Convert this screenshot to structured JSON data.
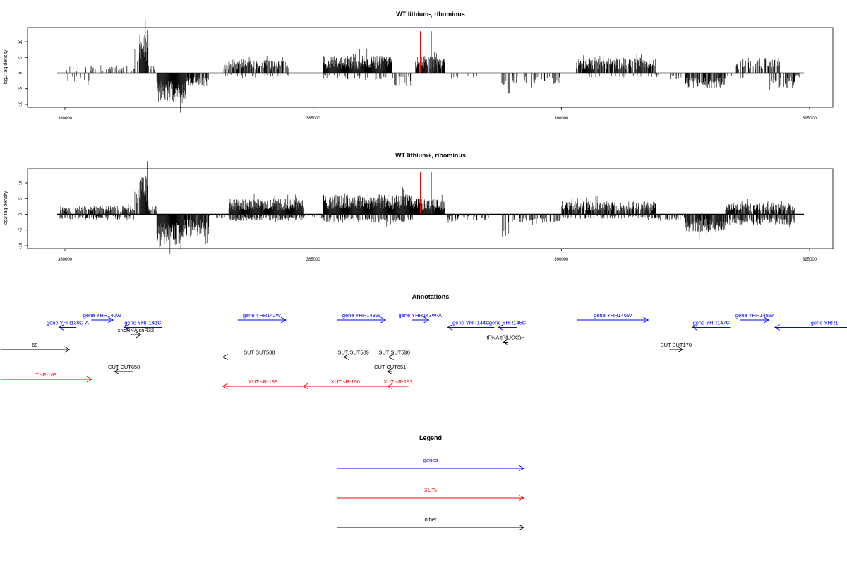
{
  "chart_data": [
    {
      "type": "bar",
      "title": "WT lithium-, ribominus",
      "ylabel": "log2 tag density",
      "xlim": [
        379850,
        394850
      ],
      "ylim": [
        -10,
        14
      ],
      "yticks": [
        -10,
        -5,
        0,
        5,
        10
      ],
      "xticks": [
        380000,
        385000,
        390000,
        395000
      ],
      "grid": false,
      "segments": [
        {
          "x0": 380000,
          "x1": 380600,
          "sign": 1,
          "level": 1.5,
          "density": 0.1
        },
        {
          "x0": 380000,
          "x1": 380500,
          "sign": -1,
          "level": 2,
          "density": 0.05
        },
        {
          "x0": 380500,
          "x1": 381400,
          "sign": 1,
          "level": 1.8,
          "density": 0.2
        },
        {
          "x0": 381400,
          "x1": 381500,
          "sign": 1,
          "level": 7,
          "density": 0.5
        },
        {
          "x0": 381500,
          "x1": 381680,
          "sign": 1,
          "level": 9,
          "density": 1.0
        },
        {
          "x0": 381680,
          "x1": 381800,
          "sign": 1,
          "level": 2,
          "density": 0.5
        },
        {
          "x0": 381850,
          "x1": 382450,
          "sign": -1,
          "level": 7,
          "density": 1.0
        },
        {
          "x0": 382450,
          "x1": 382900,
          "sign": -1,
          "level": 3,
          "density": 0.7
        },
        {
          "x0": 383200,
          "x1": 384500,
          "sign": 1,
          "level": 3.2,
          "density": 0.7
        },
        {
          "x0": 383200,
          "x1": 384500,
          "sign": -1,
          "level": 1,
          "density": 0.1
        },
        {
          "x0": 385200,
          "x1": 386600,
          "sign": 1,
          "level": 4,
          "density": 1.0
        },
        {
          "x0": 385200,
          "x1": 386600,
          "sign": -1,
          "level": 1.5,
          "density": 0.15
        },
        {
          "x0": 386600,
          "x1": 387000,
          "sign": -1,
          "level": 3,
          "density": 0.3
        },
        {
          "x0": 387050,
          "x1": 387650,
          "sign": 1,
          "level": 4,
          "density": 0.9
        },
        {
          "x0": 387650,
          "x1": 388000,
          "sign": -1,
          "level": 1.5,
          "density": 0.1
        },
        {
          "x0": 388000,
          "x1": 388300,
          "sign": -1,
          "level": 2,
          "density": 0.2
        },
        {
          "x0": 388800,
          "x1": 388950,
          "sign": -1,
          "level": 5.5,
          "density": 0.3
        },
        {
          "x0": 389000,
          "x1": 390000,
          "sign": -1,
          "level": 2.5,
          "density": 0.2
        },
        {
          "x0": 390300,
          "x1": 391900,
          "sign": 1,
          "level": 3.5,
          "density": 0.8
        },
        {
          "x0": 390300,
          "x1": 391900,
          "sign": -1,
          "level": 1,
          "density": 0.1
        },
        {
          "x0": 391900,
          "x1": 392500,
          "sign": -1,
          "level": 1.5,
          "density": 0.1
        },
        {
          "x0": 392500,
          "x1": 393300,
          "sign": -1,
          "level": 3.5,
          "density": 0.7
        },
        {
          "x0": 393300,
          "x1": 393700,
          "sign": -1,
          "level": 1.5,
          "density": 0.1
        },
        {
          "x0": 393500,
          "x1": 394400,
          "sign": 1,
          "level": 3.5,
          "density": 0.5
        },
        {
          "x0": 394200,
          "x1": 394700,
          "sign": -1,
          "level": 3.5,
          "density": 0.5
        },
        {
          "x0": 394700,
          "x1": 394800,
          "sign": -1,
          "level": 1,
          "density": 0.3
        }
      ],
      "red_lines": [
        {
          "x": 387160,
          "y": 14
        },
        {
          "x": 387380,
          "y": 14
        }
      ],
      "red_color": "#ff0000"
    },
    {
      "type": "bar",
      "title": "WT lithium+, ribominus",
      "ylabel": "log2 tag density",
      "xlim": [
        379850,
        394850
      ],
      "ylim": [
        -10,
        14
      ],
      "yticks": [
        -10,
        -5,
        0,
        5,
        10
      ],
      "xticks": [
        380000,
        385000,
        390000,
        395000
      ],
      "grid": false,
      "segments": [
        {
          "x0": 379900,
          "x1": 381400,
          "sign": 1,
          "level": 2,
          "density": 0.6
        },
        {
          "x0": 379900,
          "x1": 381400,
          "sign": -1,
          "level": 1.2,
          "density": 0.4
        },
        {
          "x0": 381400,
          "x1": 381500,
          "sign": 1,
          "level": 7,
          "density": 0.5
        },
        {
          "x0": 381500,
          "x1": 381680,
          "sign": 1,
          "level": 9,
          "density": 1.0
        },
        {
          "x0": 381680,
          "x1": 381850,
          "sign": 1,
          "level": 2,
          "density": 0.5
        },
        {
          "x0": 381850,
          "x1": 382400,
          "sign": -1,
          "level": 7,
          "density": 1.0
        },
        {
          "x0": 382400,
          "x1": 382900,
          "sign": -1,
          "level": 5,
          "density": 0.9
        },
        {
          "x0": 382900,
          "x1": 383300,
          "sign": -1,
          "level": 1,
          "density": 0.2
        },
        {
          "x0": 383300,
          "x1": 384800,
          "sign": 1,
          "level": 3.5,
          "density": 1.0
        },
        {
          "x0": 383300,
          "x1": 384800,
          "sign": -1,
          "level": 1.5,
          "density": 0.5
        },
        {
          "x0": 384800,
          "x1": 385200,
          "sign": -1,
          "level": 1,
          "density": 0.2
        },
        {
          "x0": 385200,
          "x1": 387000,
          "sign": 1,
          "level": 4.5,
          "density": 1.0
        },
        {
          "x0": 385200,
          "x1": 387000,
          "sign": -1,
          "level": 2,
          "density": 0.4
        },
        {
          "x0": 387000,
          "x1": 387650,
          "sign": 1,
          "level": 3.5,
          "density": 1.0
        },
        {
          "x0": 387650,
          "x1": 388600,
          "sign": -1,
          "level": 1.5,
          "density": 0.3
        },
        {
          "x0": 388800,
          "x1": 388950,
          "sign": -1,
          "level": 6.5,
          "density": 0.3
        },
        {
          "x0": 389000,
          "x1": 390000,
          "sign": -1,
          "level": 2,
          "density": 0.3
        },
        {
          "x0": 390000,
          "x1": 391900,
          "sign": 1,
          "level": 3,
          "density": 0.8
        },
        {
          "x0": 390000,
          "x1": 391900,
          "sign": -1,
          "level": 1,
          "density": 0.3
        },
        {
          "x0": 391900,
          "x1": 392500,
          "sign": -1,
          "level": 1.5,
          "density": 0.3
        },
        {
          "x0": 392500,
          "x1": 393300,
          "sign": -1,
          "level": 4,
          "density": 0.9
        },
        {
          "x0": 393300,
          "x1": 394700,
          "sign": 1,
          "level": 2.5,
          "density": 0.7
        },
        {
          "x0": 393300,
          "x1": 394700,
          "sign": -1,
          "level": 2.5,
          "density": 0.6
        }
      ],
      "red_lines": [
        {
          "x": 387160,
          "y": 14
        },
        {
          "x": 387380,
          "y": 14
        }
      ],
      "red_color": "#ff0000"
    },
    {
      "type": "annotation_track",
      "title": "Annotations",
      "colors": {
        "genes": "#0000ff",
        "XUTs": "#ff0000",
        "other": "#000000"
      },
      "features": [
        {
          "label": "gene YHR139C-A",
          "start": 379880,
          "end": 380230,
          "strand": "-",
          "row": 1,
          "cls": "genes"
        },
        {
          "label": "gene YHR140W",
          "start": 380530,
          "end": 380970,
          "strand": "+",
          "row": 0,
          "cls": "genes"
        },
        {
          "label": "gene YHR141C",
          "start": 381190,
          "end": 381950,
          "strand": "-",
          "row": 1,
          "cls": "genes"
        },
        {
          "label": "snoRNA snR32",
          "start": 381330,
          "end": 381530,
          "strand": "+",
          "row": 2,
          "cls": "other"
        },
        {
          "label": "gene YHR142W",
          "start": 383480,
          "end": 384450,
          "strand": "+",
          "row": 0,
          "cls": "genes"
        },
        {
          "label": "gene YHR143W",
          "start": 385480,
          "end": 386460,
          "strand": "+",
          "row": 0,
          "cls": "genes"
        },
        {
          "label": "gene YHR143W-A",
          "start": 386980,
          "end": 387330,
          "strand": "+",
          "row": 0,
          "cls": "genes"
        },
        {
          "label": "gene YHR144C",
          "start": 387710,
          "end": 388650,
          "strand": "-",
          "row": 1,
          "cls": "genes"
        },
        {
          "label": "gene YHR145C",
          "start": 388730,
          "end": 389100,
          "strand": "-",
          "row": 1,
          "cls": "genes"
        },
        {
          "label": "tRNA tP(UGG)H",
          "start": 388830,
          "end": 388930,
          "strand": "-",
          "row": 3,
          "cls": "other"
        },
        {
          "label": "gene YHR146W",
          "start": 390320,
          "end": 391750,
          "strand": "+",
          "row": 0,
          "cls": "genes"
        },
        {
          "label": "gene YHR147C",
          "start": 392640,
          "end": 393400,
          "strand": "-",
          "row": 1,
          "cls": "genes"
        },
        {
          "label": "gene YHR148W",
          "start": 393600,
          "end": 394180,
          "strand": "+",
          "row": 0,
          "cls": "genes"
        },
        {
          "label": "gene YHR1",
          "start": 394300,
          "end": 396300,
          "strand": "-",
          "row": 1,
          "cls": "genes"
        },
        {
          "label": "69",
          "start": 378700,
          "end": 380090,
          "strand": "+",
          "row": 4,
          "cls": "other"
        },
        {
          "label": "SUT SUT588",
          "start": 383180,
          "end": 384650,
          "strand": "-",
          "row": 5,
          "cls": "other"
        },
        {
          "label": "SUT SUT589",
          "start": 385620,
          "end": 386000,
          "strand": "-",
          "row": 5,
          "cls": "other"
        },
        {
          "label": "SUT SUT590",
          "start": 386520,
          "end": 386750,
          "strand": "-",
          "row": 5,
          "cls": "other"
        },
        {
          "label": "SUT SUT170",
          "start": 392180,
          "end": 392440,
          "strand": "+",
          "row": 4,
          "cls": "other"
        },
        {
          "label": "CUT CUT650",
          "start": 381000,
          "end": 381380,
          "strand": "-",
          "row": 6,
          "cls": "other"
        },
        {
          "label": "CUT CUT651",
          "start": 386500,
          "end": 386600,
          "strand": "-",
          "row": 6,
          "cls": "other"
        },
        {
          "label": "T sF-168",
          "start": 378700,
          "end": 380540,
          "strand": "+",
          "row": 7,
          "cls": "XUTs"
        },
        {
          "label": "XUT sR-189",
          "start": 383180,
          "end": 384800,
          "strand": "-",
          "row": 8,
          "cls": "XUTs"
        },
        {
          "label": "XUT sR-190",
          "start": 384800,
          "end": 386500,
          "strand": "-",
          "row": 8,
          "cls": "XUTs"
        },
        {
          "label": "XUT sR-193",
          "start": 386500,
          "end": 386920,
          "strand": "-",
          "row": 8,
          "cls": "XUTs"
        }
      ]
    },
    {
      "type": "legend",
      "title": "Legend",
      "entries": [
        {
          "label": "genes",
          "color": "#0000ff"
        },
        {
          "label": "XUTs",
          "color": "#ff0000"
        },
        {
          "label": "other",
          "color": "#000000"
        }
      ]
    }
  ]
}
